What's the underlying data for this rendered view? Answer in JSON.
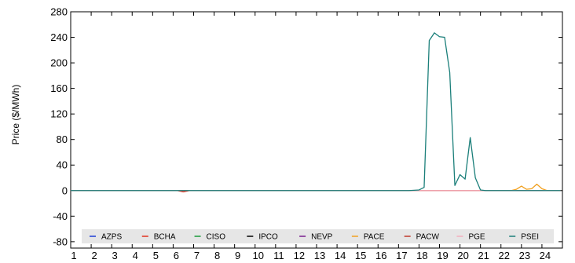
{
  "chart_data": {
    "type": "line",
    "title": "",
    "xlabel": "",
    "ylabel": "Price ($/MWh)",
    "ylim": [
      -90,
      280
    ],
    "xlim": [
      1,
      25
    ],
    "yticks": [
      -80,
      -40,
      0,
      40,
      80,
      120,
      160,
      200,
      240,
      280
    ],
    "xticks": [
      1,
      2,
      3,
      4,
      5,
      6,
      7,
      8,
      9,
      10,
      11,
      12,
      13,
      14,
      15,
      16,
      17,
      18,
      19,
      20,
      21,
      22,
      23,
      24
    ],
    "grid": false,
    "legend_position": "bottom",
    "series": [
      {
        "name": "AZPS",
        "color": "#1f3fd6",
        "points": [
          [
            1,
            0
          ],
          [
            24.9,
            0
          ]
        ]
      },
      {
        "name": "BCHA",
        "color": "#e0301e",
        "points": [
          [
            1,
            0
          ],
          [
            6.2,
            0
          ],
          [
            6.5,
            -2
          ],
          [
            6.8,
            0
          ],
          [
            24.9,
            0
          ]
        ]
      },
      {
        "name": "CISO",
        "color": "#1a9a3a",
        "points": [
          [
            1,
            0
          ],
          [
            24.9,
            0
          ]
        ]
      },
      {
        "name": "IPCO",
        "color": "#000000",
        "points": [
          [
            1,
            0
          ],
          [
            24.9,
            0
          ]
        ]
      },
      {
        "name": "NEVP",
        "color": "#7a1f8f",
        "points": [
          [
            1,
            0
          ],
          [
            24.9,
            0
          ]
        ]
      },
      {
        "name": "PACE",
        "color": "#f0a020",
        "points": [
          [
            1,
            0
          ],
          [
            22.5,
            0
          ],
          [
            22.75,
            2
          ],
          [
            23,
            7
          ],
          [
            23.25,
            2
          ],
          [
            23.5,
            3
          ],
          [
            23.75,
            10
          ],
          [
            24,
            3
          ],
          [
            24.25,
            0
          ],
          [
            24.9,
            0
          ]
        ]
      },
      {
        "name": "PACW",
        "color": "#c0392b",
        "points": [
          [
            1,
            0
          ],
          [
            24.9,
            0
          ]
        ]
      },
      {
        "name": "PGE",
        "color": "#f4aebf",
        "points": [
          [
            1,
            0
          ],
          [
            24.9,
            0
          ]
        ]
      },
      {
        "name": "PSEI",
        "color": "#1b7f7a",
        "points": [
          [
            1,
            0
          ],
          [
            17.5,
            0
          ],
          [
            17.75,
            0.5
          ],
          [
            18,
            1
          ],
          [
            18.25,
            5
          ],
          [
            18.5,
            235
          ],
          [
            18.75,
            247
          ],
          [
            19,
            241
          ],
          [
            19.25,
            240
          ],
          [
            19.5,
            185
          ],
          [
            19.75,
            8
          ],
          [
            20,
            25
          ],
          [
            20.25,
            18
          ],
          [
            20.5,
            83
          ],
          [
            20.75,
            20
          ],
          [
            21,
            1
          ],
          [
            21.25,
            0
          ],
          [
            24.9,
            0
          ]
        ]
      }
    ]
  }
}
